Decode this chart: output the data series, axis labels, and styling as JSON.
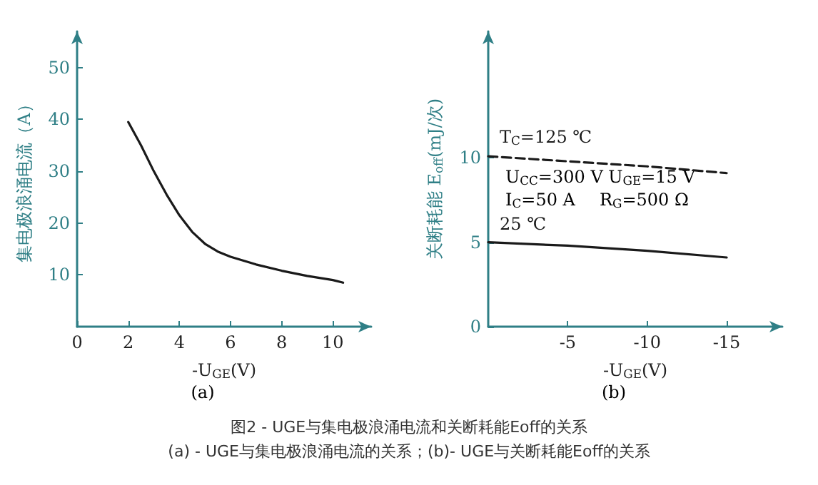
{
  "chart_data": [
    {
      "type": "line",
      "xlabel": "-U$_{GE}$(V)",
      "ylabel": "集电极浪涌电流（A）",
      "annotations": [
        "(a)"
      ],
      "xlim": [
        0,
        11.5
      ],
      "ylim": [
        0,
        57
      ],
      "xticks": [
        0,
        2,
        4,
        6,
        8,
        10
      ],
      "yticks": [
        10,
        20,
        30,
        40,
        50
      ],
      "grid": false,
      "legend": false,
      "marker": "none",
      "series": [
        {
          "color": "#1a1a1a",
          "line_style": "solid",
          "x": [
            2,
            2.5,
            3,
            3.5,
            4,
            4.5,
            5,
            5.5,
            6,
            7,
            8,
            9,
            10,
            10.4
          ],
          "values": [
            39.5,
            35,
            30,
            25.5,
            21.5,
            18.3,
            16,
            14.5,
            13.5,
            12,
            10.8,
            9.8,
            9,
            8.5
          ]
        }
      ]
    },
    {
      "type": "line",
      "xlabel": "-U$_{GE}$(V)",
      "ylabel": "关断耗能 E$_{off}$(mJ/次)",
      "annotations": [
        "(b)",
        "U$_{CC}$=300 V U$_{GE}$=15 V",
        "I$_{C}$=50 A",
        "R$_{G}$=500 Ω",
        "图2 - UGE与集电极浪涌电流和关断耗能Eoff的关系",
        "(a) - UGE与集电极浪涌电流的关系；(b)- UGE与关断耗能Eoff的关系"
      ],
      "xlim": [
        0,
        -18.5
      ],
      "ylim": [
        0,
        17.5
      ],
      "xticks": [
        -5,
        -10,
        -15
      ],
      "yticks": [
        0,
        5,
        10
      ],
      "grid": false,
      "legend": false,
      "marker": "none",
      "series": [
        {
          "name": "T$_{C}$=125 ℃",
          "color": "#1a1a1a",
          "line_style": "dashed",
          "x": [
            0,
            -5,
            -10,
            -15
          ],
          "values": [
            10.1,
            9.8,
            9.5,
            9.1
          ]
        },
        {
          "name": "25 ℃",
          "color": "#1a1a1a",
          "line_style": "solid",
          "x": [
            0,
            -5,
            -10,
            -15
          ],
          "values": [
            5.0,
            4.8,
            4.5,
            4.1
          ]
        }
      ]
    }
  ]
}
